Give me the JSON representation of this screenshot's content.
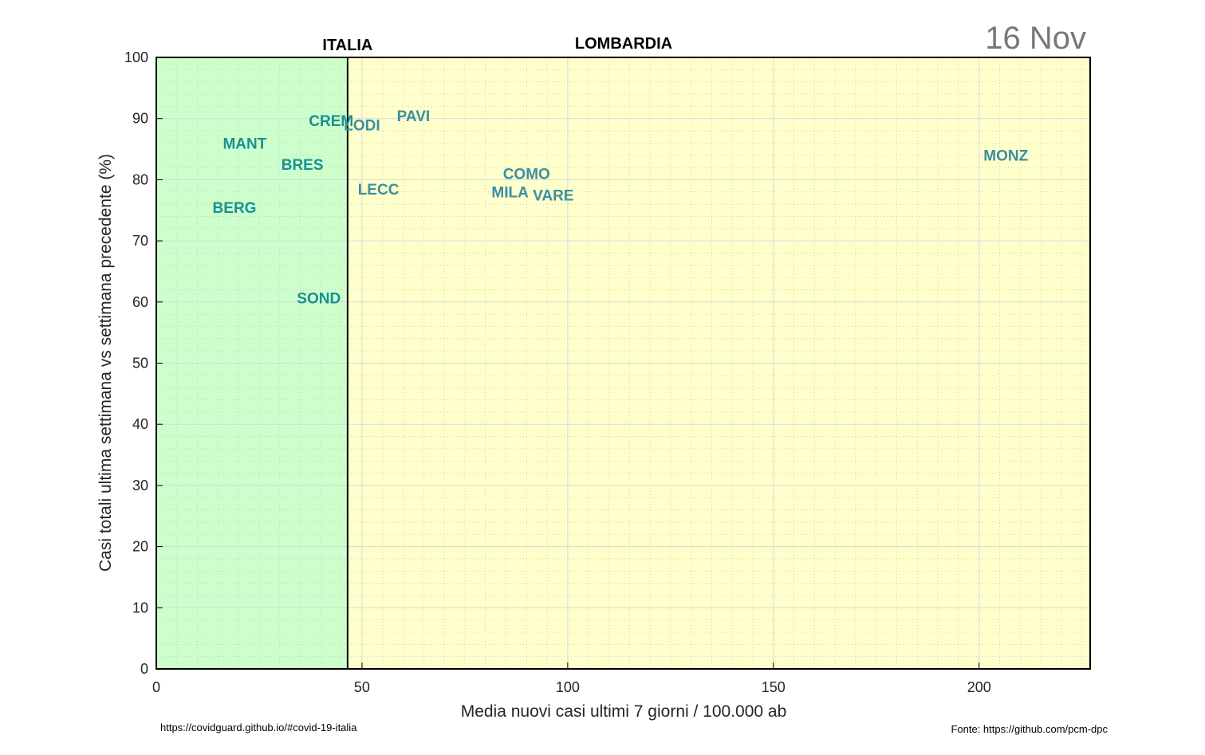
{
  "chart_data": {
    "type": "scatter",
    "date": "16 Nov",
    "xlabel": "Media nuovi casi ultimi 7 giorni / 100.000 ab",
    "ylabel": "Casi totali ultima settimana vs settimana precedente (%)",
    "xlim": [
      0,
      227
    ],
    "ylim": [
      0,
      100
    ],
    "xticks": [
      0,
      50,
      100,
      150,
      200
    ],
    "yticks": [
      0,
      10,
      20,
      30,
      40,
      50,
      60,
      70,
      80,
      90,
      100
    ],
    "grid": true,
    "threshold": {
      "x": 46.5,
      "label": "ITALIA"
    },
    "region_label": "LOMBARDIA",
    "zone_colors": {
      "below": "#ccffcc",
      "above": "#ffffcc"
    },
    "points": [
      {
        "label": "MANT",
        "x": 21.5,
        "y": 86.0,
        "color": "#1a9090"
      },
      {
        "label": "BRES",
        "x": 35.5,
        "y": 82.5,
        "color": "#1a9090"
      },
      {
        "label": "BERG",
        "x": 19.0,
        "y": 75.5,
        "color": "#1a9090"
      },
      {
        "label": "SOND",
        "x": 39.5,
        "y": 60.7,
        "color": "#1a9090"
      },
      {
        "label": "CREM",
        "x": 42.5,
        "y": 89.7,
        "color": "#1a9090"
      },
      {
        "label": "LODI",
        "x": 50.0,
        "y": 89.0,
        "color": "#3a8fa0"
      },
      {
        "label": "PAVI",
        "x": 62.5,
        "y": 90.5,
        "color": "#3a8fa0"
      },
      {
        "label": "LECC",
        "x": 54.0,
        "y": 78.5,
        "color": "#3a8fa0"
      },
      {
        "label": "COMO",
        "x": 90.0,
        "y": 81.0,
        "color": "#3a8fa0"
      },
      {
        "label": "MILA",
        "x": 86.0,
        "y": 78.0,
        "color": "#3a8fa0"
      },
      {
        "label": "VARE",
        "x": 96.5,
        "y": 77.5,
        "color": "#3a8fa0"
      },
      {
        "label": "MONZ",
        "x": 206.5,
        "y": 84.0,
        "color": "#3a8fa0"
      }
    ]
  },
  "footer": {
    "left": "https://covidguard.github.io/#covid-19-italia",
    "right": "Fonte: https://github.com/pcm-dpc"
  }
}
